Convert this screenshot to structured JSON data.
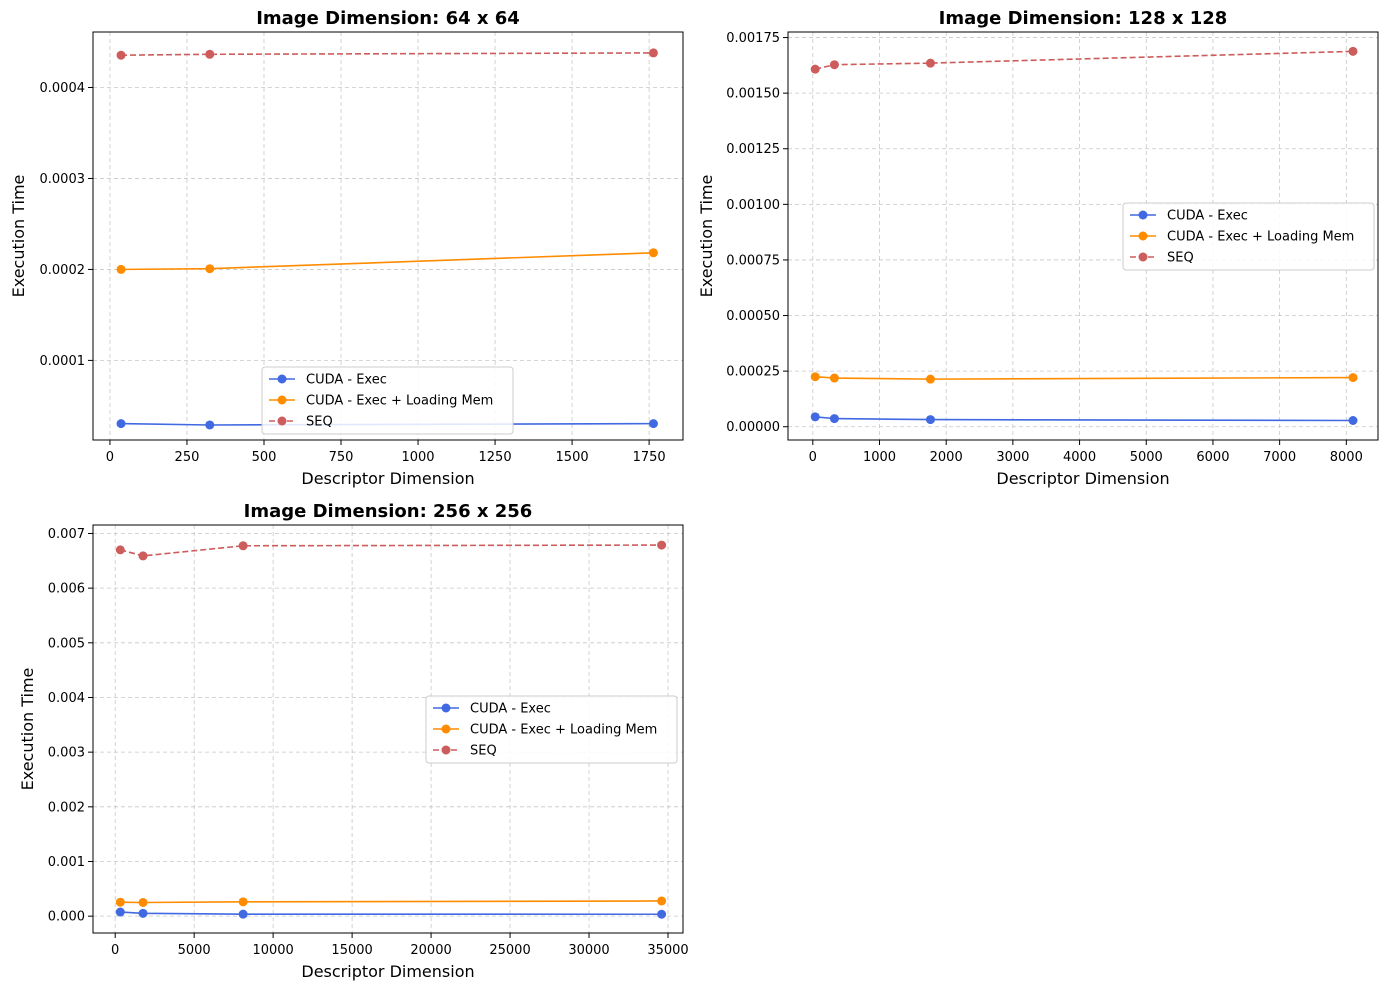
{
  "chart_data": [
    {
      "type": "line",
      "title": "Image Dimension: 64 x 64",
      "xlabel": "Descriptor Dimension",
      "ylabel": "Execution Time",
      "xlim": [
        -55,
        1860
      ],
      "ylim": [
        1.25e-05,
        0.000461
      ],
      "xticks": [
        0,
        250,
        500,
        750,
        1000,
        1250,
        1500,
        1750
      ],
      "xtick_labels": [
        "0",
        "250",
        "500",
        "750",
        "1000",
        "1250",
        "1500",
        "1750"
      ],
      "yticks": [
        0.0001,
        0.0002,
        0.0003,
        0.0004
      ],
      "ytick_labels": [
        "0.0001",
        "0.0002",
        "0.0003",
        "0.0004"
      ],
      "grid": true,
      "legend_position": "lower-center",
      "series": [
        {
          "name": "CUDA - Exec",
          "color": "#4169e1",
          "dashed": false,
          "x": [
            36,
            324,
            1764
          ],
          "y": [
            3.05e-05,
            2.9e-05,
            3.05e-05
          ]
        },
        {
          "name": "CUDA - Exec + Loading Mem",
          "color": "#ff8c00",
          "dashed": false,
          "x": [
            36,
            324,
            1764
          ],
          "y": [
            0.0002,
            0.0002008,
            0.0002183
          ]
        },
        {
          "name": "SEQ",
          "color": "#cd5c5c",
          "dashed": true,
          "x": [
            36,
            324,
            1764
          ],
          "y": [
            0.0004355,
            0.0004365,
            0.000438
          ]
        }
      ]
    },
    {
      "type": "line",
      "title": "Image Dimension: 128 x 128",
      "xlabel": "Descriptor Dimension",
      "ylabel": "Execution Time",
      "xlim": [
        -372,
        8475
      ],
      "ylim": [
        -5.97e-05,
        0.001775
      ],
      "xticks": [
        0,
        1000,
        2000,
        3000,
        4000,
        5000,
        6000,
        7000,
        8000
      ],
      "xtick_labels": [
        "0",
        "1000",
        "2000",
        "3000",
        "4000",
        "5000",
        "6000",
        "7000",
        "8000"
      ],
      "yticks": [
        0,
        0.00025,
        0.0005,
        0.00075,
        0.001,
        0.00125,
        0.0015,
        0.00175
      ],
      "ytick_labels": [
        "0.00000",
        "0.00025",
        "0.00050",
        "0.00075",
        "0.00100",
        "0.00125",
        "0.00150",
        "0.00175"
      ],
      "grid": true,
      "legend_position": "center-right",
      "series": [
        {
          "name": "CUDA - Exec",
          "color": "#4169e1",
          "dashed": false,
          "x": [
            36,
            324,
            1764,
            8100
          ],
          "y": [
            4.45e-05,
            3.65e-05,
            3.2e-05,
            2.8e-05
          ]
        },
        {
          "name": "CUDA - Exec + Loading Mem",
          "color": "#ff8c00",
          "dashed": false,
          "x": [
            36,
            324,
            1764,
            8100
          ],
          "y": [
            0.000225,
            0.000219,
            0.000214,
            0.000221
          ]
        },
        {
          "name": "SEQ",
          "color": "#cd5c5c",
          "dashed": true,
          "x": [
            36,
            324,
            1764,
            8100
          ],
          "y": [
            0.001608,
            0.001628,
            0.001635,
            0.001688
          ]
        }
      ]
    },
    {
      "type": "line",
      "title": "Image Dimension: 256 x 256",
      "xlabel": "Descriptor Dimension",
      "ylabel": "Execution Time",
      "xlim": [
        -1405,
        35950
      ],
      "ylim": [
        -0.000308,
        0.007155
      ],
      "xticks": [
        0,
        5000,
        10000,
        15000,
        20000,
        25000,
        30000,
        35000
      ],
      "xtick_labels": [
        "0",
        "5000",
        "10000",
        "15000",
        "20000",
        "25000",
        "30000",
        "35000"
      ],
      "yticks": [
        0,
        0.001,
        0.002,
        0.003,
        0.004,
        0.005,
        0.006,
        0.007
      ],
      "ytick_labels": [
        "0.000",
        "0.001",
        "0.002",
        "0.003",
        "0.004",
        "0.005",
        "0.006",
        "0.007"
      ],
      "grid": true,
      "legend_position": "center-right",
      "series": [
        {
          "name": "CUDA - Exec",
          "color": "#4169e1",
          "dashed": false,
          "x": [
            324,
            1764,
            8100,
            34596
          ],
          "y": [
            7.5e-05,
            5.2e-05,
            3.7e-05,
            3.5e-05
          ]
        },
        {
          "name": "CUDA - Exec + Loading Mem",
          "color": "#ff8c00",
          "dashed": false,
          "x": [
            324,
            1764,
            8100,
            34596
          ],
          "y": [
            0.000255,
            0.00025,
            0.000262,
            0.000278
          ]
        },
        {
          "name": "SEQ",
          "color": "#cd5c5c",
          "dashed": true,
          "x": [
            324,
            1764,
            8100,
            34596
          ],
          "y": [
            0.0067,
            0.00659,
            0.006775,
            0.006788
          ]
        }
      ]
    }
  ]
}
